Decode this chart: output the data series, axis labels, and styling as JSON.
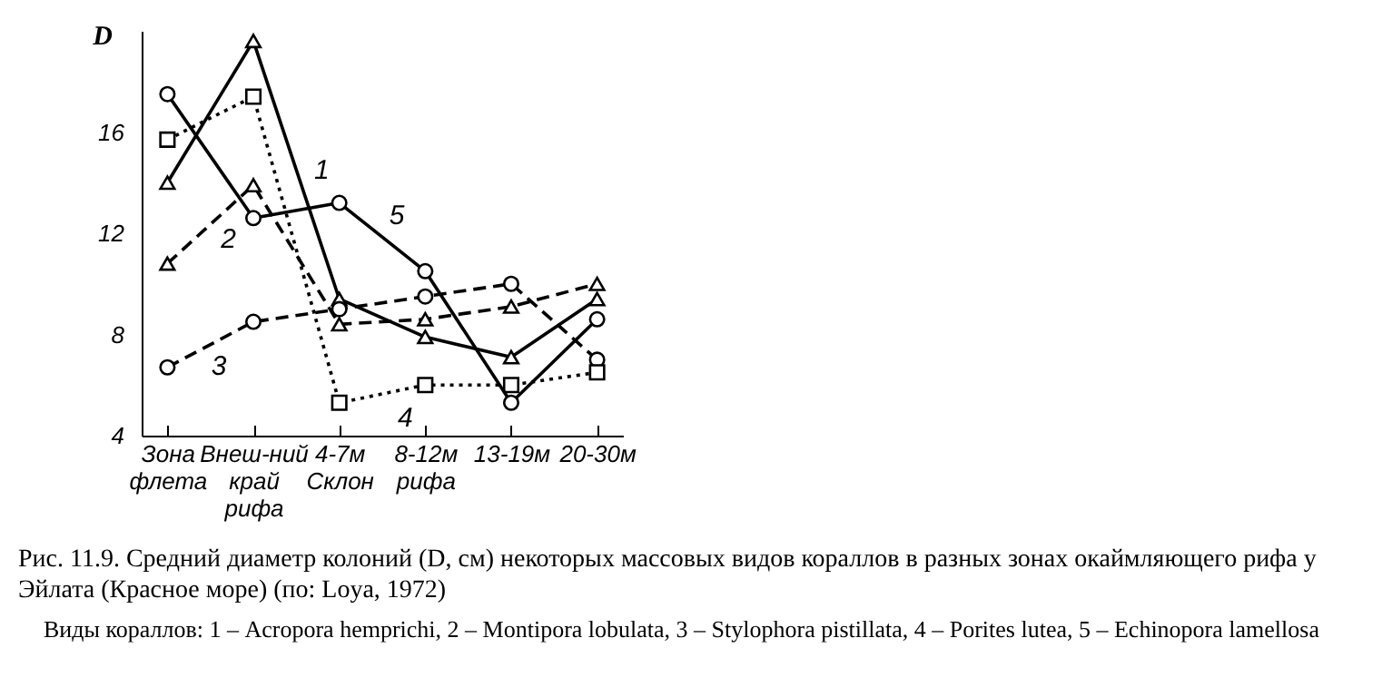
{
  "chart_data": {
    "type": "line",
    "ylabel": "D",
    "categories": [
      "Зона флета",
      "Внеш-ний край рифа",
      "4-7м Склон",
      "8-12м рифа",
      "13-19м",
      "20-30м"
    ],
    "ylim": [
      4,
      20
    ],
    "yticks": [
      4,
      8,
      12,
      16
    ],
    "series": [
      {
        "name": "1",
        "color": "#000000",
        "marker": "triangle",
        "line_style": "solid",
        "values": [
          14.0,
          19.6,
          9.4,
          7.9,
          7.1,
          9.4
        ]
      },
      {
        "name": "2",
        "color": "#000000",
        "marker": "triangle",
        "line_style": "dashed",
        "values": [
          10.8,
          13.9,
          8.4,
          8.6,
          9.1,
          10.0
        ]
      },
      {
        "name": "3",
        "color": "#000000",
        "marker": "circle",
        "line_style": "dashed",
        "values": [
          6.7,
          8.5,
          9.0,
          9.5,
          10.0,
          7.0
        ]
      },
      {
        "name": "4",
        "color": "#000000",
        "marker": "square",
        "line_style": "dotted",
        "values": [
          15.7,
          17.4,
          5.3,
          6.0,
          6.0,
          6.5
        ]
      },
      {
        "name": "5",
        "color": "#000000",
        "marker": "circle",
        "line_style": "solid",
        "values": [
          17.5,
          12.6,
          13.2,
          10.5,
          5.3,
          8.6
        ]
      }
    ],
    "annotations": [
      "Рис. 11.9. Средний диаметр колоний (D, см) некоторых массовых видов кораллов в разных зонах окаймляющего рифа у Эйлата (Красное море)  (по: Loya, 1972)",
      "Виды кораллов: 1 – Acropora hemprichi, 2 – Montipora lobulata, 3 – Stylophora pistillata, 4 – Porites lutea, 5 – Echinopora lamellosa"
    ]
  }
}
